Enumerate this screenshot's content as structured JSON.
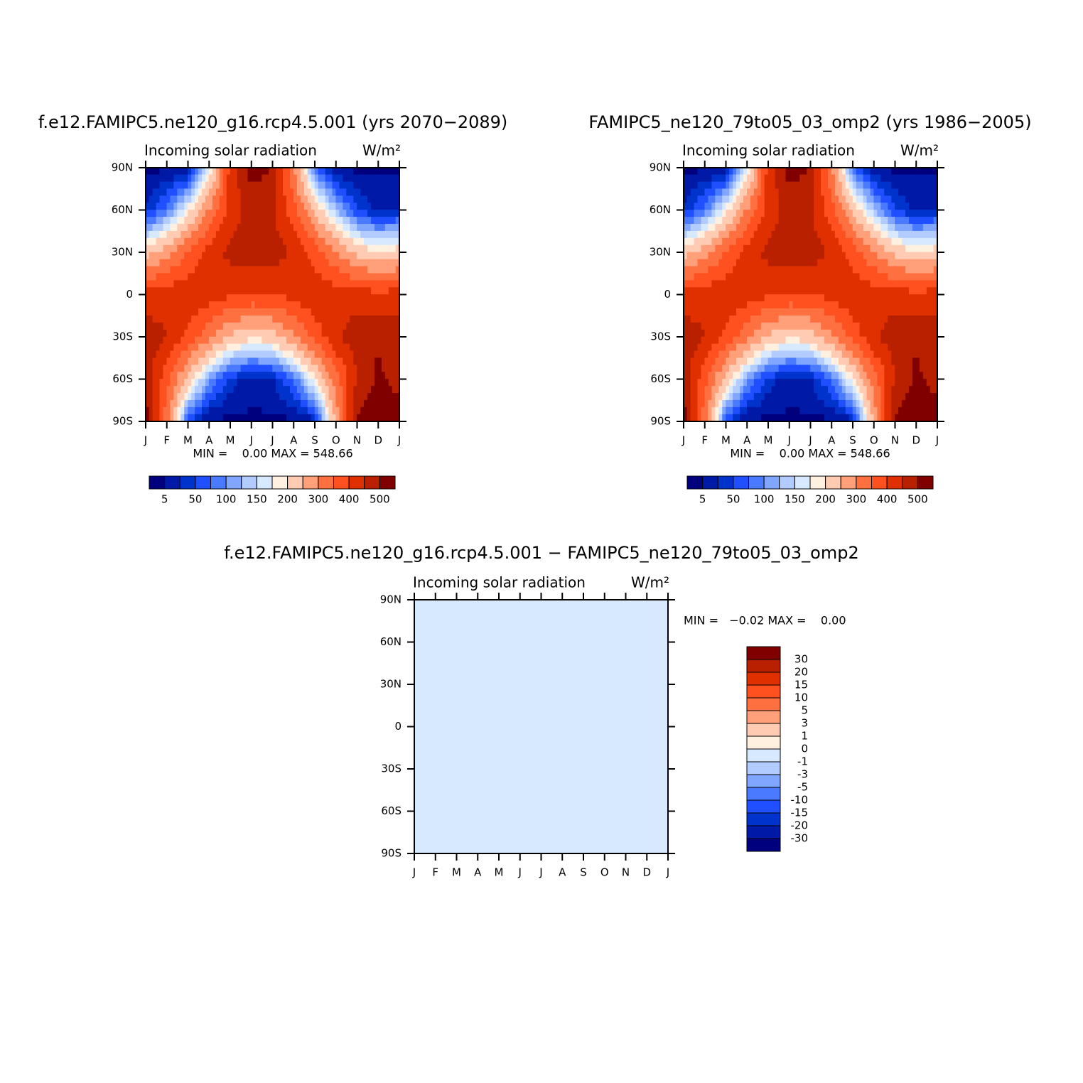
{
  "chart_data": [
    {
      "type": "contour",
      "title": "f.e12.FAMIPC5.ne120_g16.rcp4.5.001 (yrs 2070−2089)",
      "subtitle_left": "Incoming solar radiation",
      "subtitle_right": "W/m²",
      "stats": "MIN =    0.00 MAX = 548.66",
      "categories": [
        "J",
        "F",
        "M",
        "A",
        "M",
        "J",
        "J",
        "A",
        "S",
        "O",
        "N",
        "D",
        "J"
      ],
      "y": [
        90,
        60,
        30,
        0,
        -30,
        -60,
        -90
      ],
      "ylim": [
        -90,
        90
      ],
      "yticks": [
        {
          "value": 90,
          "label": "90N"
        },
        {
          "value": 60,
          "label": "60N"
        },
        {
          "value": 30,
          "label": "30N"
        },
        {
          "value": 0,
          "label": "0"
        },
        {
          "value": -30,
          "label": "30S"
        },
        {
          "value": -60,
          "label": "60S"
        },
        {
          "value": -90,
          "label": "90S"
        }
      ],
      "values": [
        [
          0,
          0,
          5,
          150,
          420,
          520,
          500,
          300,
          80,
          0,
          0,
          0,
          0
        ],
        [
          30,
          80,
          180,
          300,
          420,
          470,
          460,
          370,
          240,
          130,
          50,
          20,
          30
        ],
        [
          220,
          280,
          350,
          420,
          465,
          480,
          475,
          440,
          380,
          300,
          230,
          200,
          220
        ],
        [
          420,
          430,
          440,
          430,
          410,
          395,
          400,
          420,
          435,
          430,
          420,
          415,
          420
        ],
        [
          480,
          450,
          390,
          310,
          240,
          210,
          225,
          290,
          370,
          440,
          480,
          495,
          480
        ],
        [
          480,
          370,
          230,
          110,
          40,
          15,
          25,
          80,
          190,
          330,
          450,
          510,
          480
        ],
        [
          530,
          320,
          60,
          0,
          0,
          0,
          0,
          0,
          20,
          250,
          510,
          550,
          530
        ]
      ],
      "levels": [
        5,
        50,
        100,
        150,
        200,
        300,
        400,
        500
      ],
      "colorbar": "horizontal",
      "colors": [
        "#00007f",
        "#0019a6",
        "#0033cc",
        "#1f4fff",
        "#4a7aff",
        "#80a6ff",
        "#b3ccff",
        "#d6e9ff",
        "#fff0e0",
        "#ffccb3",
        "#ffa07a",
        "#ff7040",
        "#ff5020",
        "#e03000",
        "#b82000",
        "#800000"
      ]
    },
    {
      "type": "contour",
      "title": "FAMIPC5_ne120_79to05_03_omp2 (yrs 1986−2005)",
      "subtitle_left": "Incoming solar radiation",
      "subtitle_right": "W/m²",
      "stats": "MIN =    0.00 MAX = 548.66",
      "categories": [
        "J",
        "F",
        "M",
        "A",
        "M",
        "J",
        "J",
        "A",
        "S",
        "O",
        "N",
        "D",
        "J"
      ],
      "y": [
        90,
        60,
        30,
        0,
        -30,
        -60,
        -90
      ],
      "ylim": [
        -90,
        90
      ],
      "yticks": [
        {
          "value": 90,
          "label": "90N"
        },
        {
          "value": 60,
          "label": "60N"
        },
        {
          "value": 30,
          "label": "30N"
        },
        {
          "value": 0,
          "label": "0"
        },
        {
          "value": -30,
          "label": "30S"
        },
        {
          "value": -60,
          "label": "60S"
        },
        {
          "value": -90,
          "label": "90S"
        }
      ],
      "values": [
        [
          0,
          0,
          5,
          150,
          420,
          520,
          500,
          300,
          80,
          0,
          0,
          0,
          0
        ],
        [
          30,
          80,
          180,
          300,
          420,
          470,
          460,
          370,
          240,
          130,
          50,
          20,
          30
        ],
        [
          220,
          280,
          350,
          420,
          465,
          480,
          475,
          440,
          380,
          300,
          230,
          200,
          220
        ],
        [
          420,
          430,
          440,
          430,
          410,
          395,
          400,
          420,
          435,
          430,
          420,
          415,
          420
        ],
        [
          480,
          450,
          390,
          310,
          240,
          210,
          225,
          290,
          370,
          440,
          480,
          495,
          480
        ],
        [
          480,
          370,
          230,
          110,
          40,
          15,
          25,
          80,
          190,
          330,
          450,
          510,
          480
        ],
        [
          530,
          320,
          60,
          0,
          0,
          0,
          0,
          0,
          20,
          250,
          510,
          550,
          530
        ]
      ],
      "levels": [
        5,
        50,
        100,
        150,
        200,
        300,
        400,
        500
      ],
      "colorbar": "horizontal",
      "colors": [
        "#00007f",
        "#0019a6",
        "#0033cc",
        "#1f4fff",
        "#4a7aff",
        "#80a6ff",
        "#b3ccff",
        "#d6e9ff",
        "#fff0e0",
        "#ffccb3",
        "#ffa07a",
        "#ff7040",
        "#ff5020",
        "#e03000",
        "#b82000",
        "#800000"
      ]
    },
    {
      "type": "contour",
      "title": "f.e12.FAMIPC5.ne120_g16.rcp4.5.001 − FAMIPC5_ne120_79to05_03_omp2",
      "subtitle_left": "Incoming solar radiation",
      "subtitle_right": "W/m²",
      "stats": "MIN =   −0.02 MAX =    0.00",
      "categories": [
        "J",
        "F",
        "M",
        "A",
        "M",
        "J",
        "J",
        "A",
        "S",
        "O",
        "N",
        "D",
        "J"
      ],
      "y": [
        90,
        60,
        30,
        0,
        -30,
        -60,
        -90
      ],
      "ylim": [
        -90,
        90
      ],
      "yticks": [
        {
          "value": 90,
          "label": "90N"
        },
        {
          "value": 60,
          "label": "60N"
        },
        {
          "value": 30,
          "label": "30N"
        },
        {
          "value": 0,
          "label": "0"
        },
        {
          "value": -30,
          "label": "30S"
        },
        {
          "value": -60,
          "label": "60S"
        },
        {
          "value": -90,
          "label": "90S"
        }
      ],
      "values": [
        [
          -0.01,
          -0.01,
          -0.01,
          -0.01,
          -0.01,
          -0.01,
          -0.01,
          -0.01,
          -0.01,
          -0.01,
          -0.01,
          -0.01,
          -0.01
        ],
        [
          -0.01,
          -0.01,
          -0.01,
          -0.01,
          -0.01,
          -0.01,
          -0.01,
          -0.01,
          -0.01,
          -0.01,
          -0.01,
          -0.01,
          -0.01
        ],
        [
          -0.01,
          -0.01,
          -0.01,
          -0.01,
          -0.01,
          -0.01,
          -0.01,
          -0.01,
          -0.01,
          -0.01,
          -0.01,
          -0.01,
          -0.01
        ],
        [
          -0.01,
          -0.01,
          -0.01,
          -0.01,
          -0.01,
          -0.01,
          -0.01,
          -0.01,
          -0.01,
          -0.01,
          -0.01,
          -0.01,
          -0.01
        ],
        [
          -0.01,
          -0.01,
          -0.01,
          -0.01,
          -0.01,
          -0.01,
          -0.01,
          -0.01,
          -0.01,
          -0.01,
          -0.01,
          -0.01,
          -0.01
        ],
        [
          -0.01,
          -0.01,
          -0.01,
          -0.01,
          -0.01,
          -0.01,
          -0.01,
          -0.01,
          -0.01,
          -0.01,
          -0.01,
          -0.01,
          -0.01
        ],
        [
          -0.02,
          -0.01,
          -0.01,
          -0.01,
          -0.01,
          -0.01,
          -0.01,
          -0.01,
          -0.01,
          -0.01,
          -0.01,
          -0.01,
          0
        ]
      ],
      "levels": [
        -30,
        -20,
        -15,
        -10,
        -5,
        -3,
        -1,
        0,
        1,
        3,
        5,
        10,
        15,
        20,
        30
      ],
      "colorbar": "vertical",
      "colors": [
        "#00007f",
        "#0019a6",
        "#0033cc",
        "#1f4fff",
        "#4a7aff",
        "#80a6ff",
        "#b3ccff",
        "#d6e9ff",
        "#fff0e0",
        "#ffccb3",
        "#ffa07a",
        "#ff7040",
        "#ff5020",
        "#e03000",
        "#b82000",
        "#800000"
      ]
    }
  ]
}
